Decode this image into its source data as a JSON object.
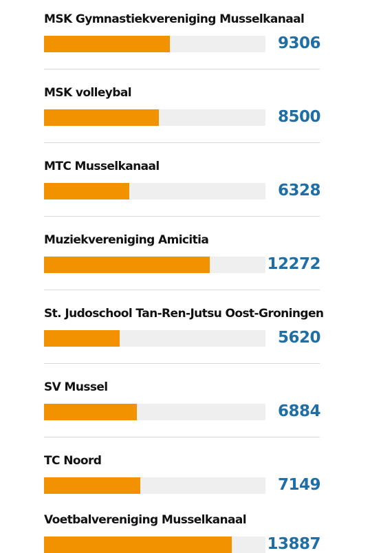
{
  "chart_data": {
    "type": "bar",
    "orientation": "horizontal",
    "categories": [
      "MSK Gymnastiekvereniging Musselkanaal",
      "MSK volleybal",
      "MTC Musselkanaal",
      "Muziekvereniging Amicitia",
      "St. Judoschool Tan-Ren-Jutsu Oost-Groningen",
      "SV Mussel",
      "TC Noord",
      "Voetbalvereniging Musselkanaal"
    ],
    "values": [
      9306,
      8500,
      6328,
      12272,
      5620,
      6884,
      7149,
      13887
    ],
    "value_labels": [
      "9306",
      "8500",
      "6328",
      "12272",
      "5620",
      "6884",
      "7149",
      "13887"
    ],
    "scale_max": 16400,
    "colors": {
      "bar": "#f39200",
      "track": "#efefef",
      "value": "#1f6fa6",
      "label": "#111111",
      "separator": "#d8d8d8"
    },
    "grid": false,
    "legend": "none"
  }
}
